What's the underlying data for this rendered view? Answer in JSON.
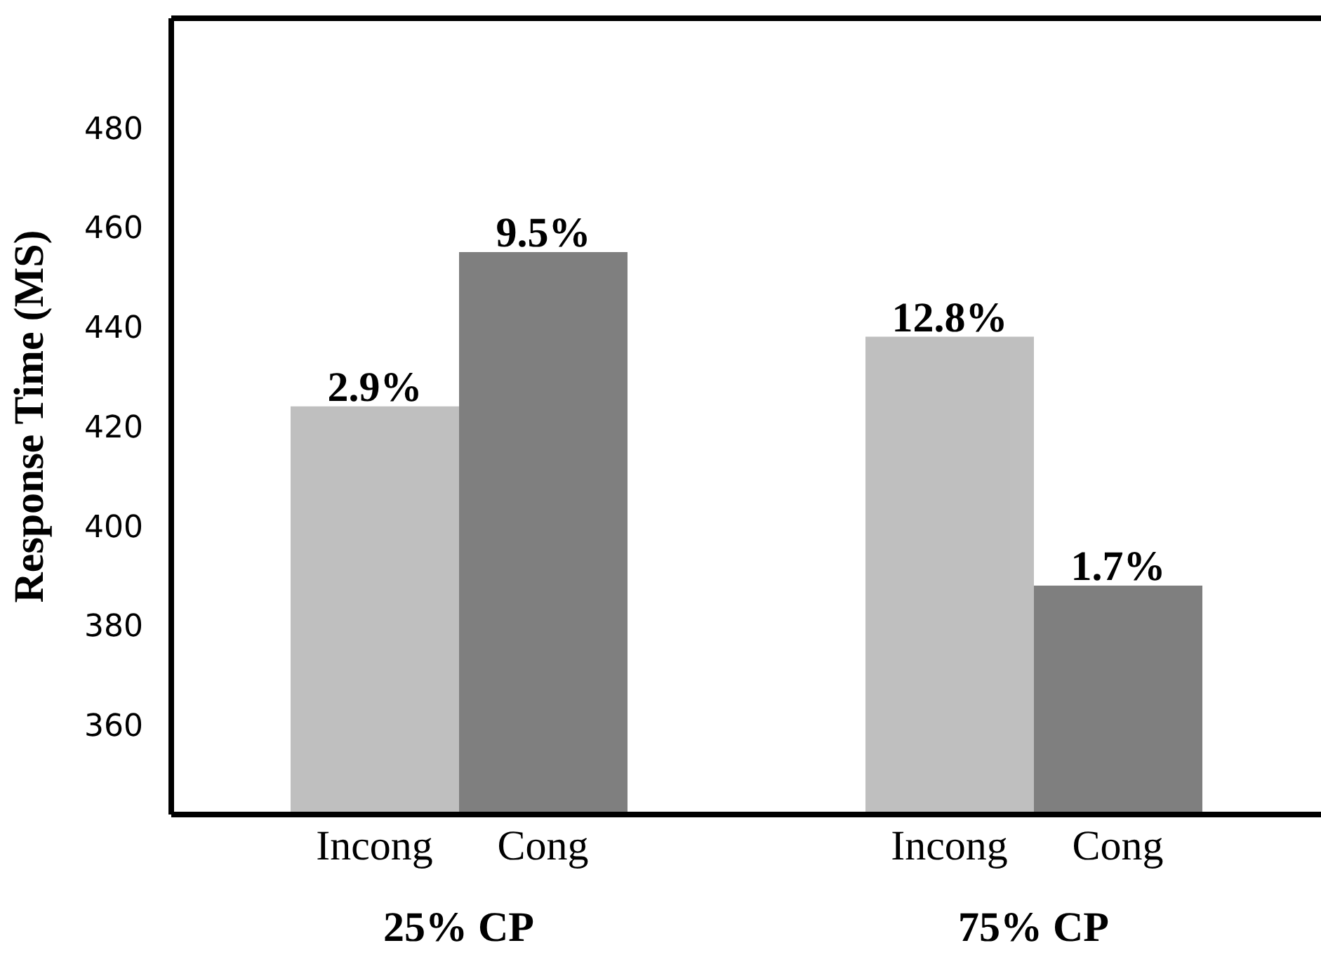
{
  "chart_data": {
    "type": "bar",
    "ylabel": "Response Time (MS)",
    "categories": [
      "25% CP",
      "75% CP"
    ],
    "series": [
      {
        "name": "Incong",
        "color": "#bfbfbf",
        "values": [
          424,
          438
        ]
      },
      {
        "name": "Cong",
        "color": "#7f7f7f",
        "values": [
          455,
          388
        ]
      }
    ],
    "annotations": [
      {
        "text": "2.9%",
        "x": "25% CP",
        "y": 424
      },
      {
        "text": "9.5%",
        "x": "25% CP",
        "y": 455
      },
      {
        "text": "12.8%",
        "x": "75% CP",
        "y": 438
      },
      {
        "text": "1.7%",
        "x": "75% CP",
        "y": 388
      }
    ],
    "ylim": [
      342,
      502
    ],
    "yticks": [
      360,
      380,
      400,
      420,
      440,
      460,
      480
    ],
    "grid": false,
    "legend": false
  }
}
